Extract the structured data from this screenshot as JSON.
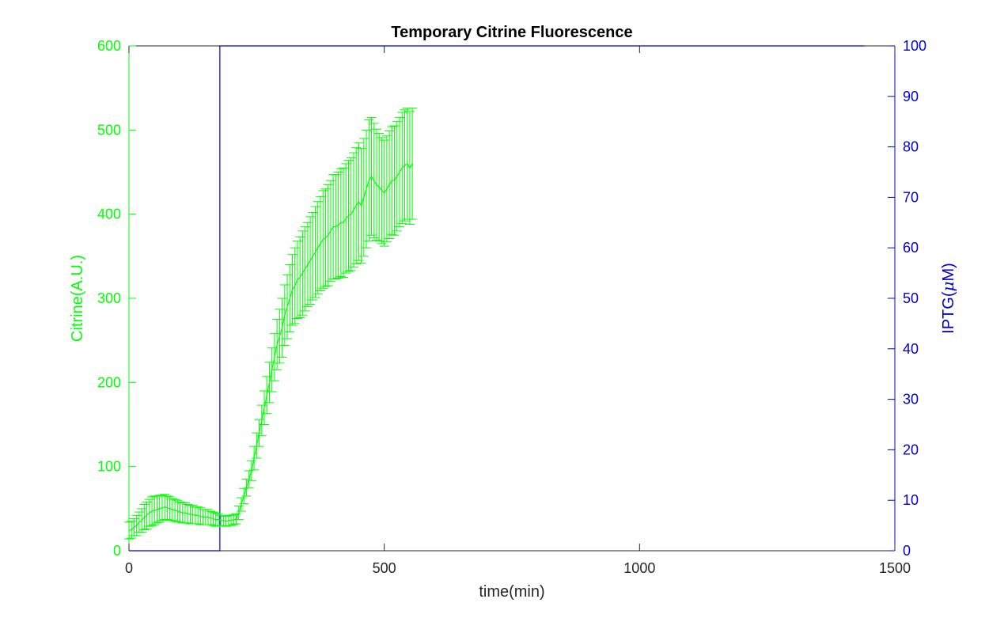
{
  "chart_data": {
    "type": "line",
    "title": "Temporary Citrine Fluorescence",
    "xlabel": "time(min)",
    "ylabel_left": "Citrine(A.U.)",
    "ylabel_right": "IPTG(",
    "ylabel_right_mu": "μ",
    "ylabel_right_unit": "M)",
    "xlim": [
      0,
      1500
    ],
    "ylim_left": [
      0,
      600
    ],
    "ylim_right": [
      0,
      100
    ],
    "xticks": [
      "0",
      "500",
      "1000",
      "1500"
    ],
    "yticks_left": [
      "0",
      "100",
      "200",
      "300",
      "400",
      "500",
      "600"
    ],
    "yticks_right": [
      "0",
      "10",
      "20",
      "30",
      "40",
      "50",
      "60",
      "70",
      "80",
      "90",
      "100"
    ],
    "grid": false,
    "colors": {
      "citrine": "#00ff00",
      "iptg": "#0000cc",
      "axis": "#262626"
    },
    "series": [
      {
        "axis": "left",
        "errorbars": true,
        "x": [
          0,
          5,
          10,
          15,
          20,
          25,
          30,
          35,
          40,
          45,
          50,
          55,
          60,
          65,
          70,
          75,
          80,
          85,
          90,
          95,
          100,
          105,
          110,
          115,
          120,
          125,
          130,
          135,
          140,
          145,
          150,
          155,
          160,
          165,
          170,
          175,
          180,
          185,
          190,
          195,
          200,
          205,
          210,
          215,
          220,
          225,
          230,
          235,
          240,
          245,
          250,
          255,
          260,
          265,
          270,
          275,
          280,
          285,
          290,
          295,
          300,
          305,
          310,
          315,
          320,
          325,
          330,
          335,
          340,
          345,
          350,
          355,
          360,
          365,
          370,
          375,
          380,
          385,
          390,
          395,
          400,
          405,
          410,
          415,
          420,
          425,
          430,
          435,
          440,
          445,
          450,
          455,
          460,
          465,
          470,
          475,
          480,
          485,
          490,
          495,
          500,
          505,
          510,
          515,
          520,
          525,
          530,
          535,
          540,
          545,
          550,
          555
        ],
        "y": [
          24,
          25,
          28,
          30,
          34,
          36,
          40,
          42,
          45,
          47,
          48,
          49,
          50,
          51,
          52,
          51,
          50,
          49,
          48,
          47,
          46,
          45,
          45,
          44,
          43,
          43,
          42,
          42,
          41,
          40,
          40,
          40,
          39,
          38,
          37,
          37,
          36,
          36,
          35,
          36,
          36,
          37,
          38,
          45,
          55,
          65,
          75,
          85,
          95,
          110,
          125,
          140,
          155,
          170,
          185,
          200,
          215,
          230,
          245,
          255,
          265,
          280,
          290,
          300,
          310,
          315,
          322,
          325,
          330,
          335,
          340,
          345,
          350,
          355,
          360,
          365,
          370,
          372,
          375,
          380,
          385,
          385,
          387,
          390,
          390,
          395,
          398,
          400,
          405,
          410,
          415,
          410,
          420,
          430,
          440,
          445,
          440,
          435,
          432,
          428,
          425,
          430,
          435,
          440,
          440,
          445,
          450,
          455,
          458,
          460,
          455,
          460
        ],
        "err": [
          10,
          10,
          10,
          12,
          12,
          14,
          15,
          16,
          16,
          17,
          17,
          16,
          16,
          15,
          15,
          14,
          14,
          13,
          13,
          13,
          12,
          12,
          12,
          11,
          11,
          11,
          10,
          10,
          10,
          9,
          9,
          9,
          8,
          8,
          8,
          7,
          6,
          6,
          6,
          6,
          6,
          6,
          6,
          8,
          8,
          9,
          10,
          10,
          12,
          14,
          15,
          16,
          18,
          20,
          22,
          24,
          26,
          28,
          30,
          32,
          35,
          36,
          38,
          40,
          42,
          45,
          46,
          48,
          50,
          50,
          50,
          52,
          52,
          54,
          55,
          56,
          58,
          58,
          60,
          60,
          62,
          62,
          63,
          64,
          65,
          65,
          66,
          67,
          68,
          69,
          70,
          68,
          70,
          70,
          72,
          70,
          68,
          66,
          64,
          63,
          63,
          63,
          64,
          64,
          65,
          65,
          65,
          66,
          66,
          66,
          67,
          66
        ]
      },
      {
        "axis": "right",
        "x": [
          0,
          178,
          178,
          1440
        ],
        "y": [
          0,
          0,
          100,
          100
        ]
      }
    ]
  }
}
